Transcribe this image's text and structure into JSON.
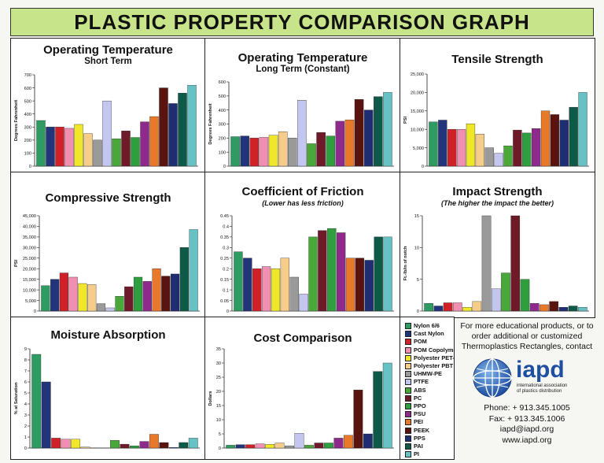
{
  "header": {
    "title": "PLASTIC PROPERTY COMPARISON GRAPH"
  },
  "materials": [
    {
      "name": "Nylon 6/6",
      "color": "#2e9c62"
    },
    {
      "name": "Cast Nylon",
      "color": "#22347a"
    },
    {
      "name": "POM",
      "color": "#cf2127"
    },
    {
      "name": "POM Copolymer",
      "color": "#f08fb2"
    },
    {
      "name": "Polyester PET-P",
      "color": "#f0e62a"
    },
    {
      "name": "Polyester PBT",
      "color": "#f6cc8a"
    },
    {
      "name": "UHMW-PE",
      "color": "#9a9a9a"
    },
    {
      "name": "PTFE",
      "color": "#c3c6ee"
    },
    {
      "name": "ABS",
      "color": "#4aa83a"
    },
    {
      "name": "PC",
      "color": "#6e1a28"
    },
    {
      "name": "PPO",
      "color": "#2f9e3e"
    },
    {
      "name": "PSU",
      "color": "#8d2a8c"
    },
    {
      "name": "PEI",
      "color": "#e8782a"
    },
    {
      "name": "PEEK",
      "color": "#5a1410"
    },
    {
      "name": "PPS",
      "color": "#1f2d72"
    },
    {
      "name": "PAI",
      "color": "#0e5a48"
    },
    {
      "name": "PI",
      "color": "#66c2c4"
    }
  ],
  "info": {
    "text": [
      "For more educational products, or to",
      "order additional or customized",
      "Thermoplastics Rectangles, contact"
    ],
    "logo_name": "iapd",
    "logo_tagline": [
      "international association",
      "of plastics distribution"
    ],
    "contact": [
      "Phone: + 913.345.1005",
      "Fax: + 913.345.1006",
      "iapd@iapd.org",
      "www.iapd.org"
    ]
  },
  "chart_data": [
    {
      "type": "bar",
      "title": "Operating Temperature",
      "subtitle": "Short Term",
      "xlabel": "",
      "ylabel": "Degrees Fahrenheit",
      "ylim": [
        0,
        700
      ],
      "ticks": [
        0,
        100,
        200,
        300,
        400,
        500,
        600,
        700
      ],
      "tick_labels": [
        "0",
        "100",
        "200",
        "300",
        "400",
        "500",
        "600",
        "700"
      ],
      "values": [
        350,
        300,
        300,
        290,
        320,
        250,
        200,
        500,
        210,
        270,
        220,
        340,
        380,
        600,
        480,
        560,
        620
      ]
    },
    {
      "type": "bar",
      "title": "Operating Temperature",
      "subtitle": "Long Term (Constant)",
      "xlabel": "",
      "ylabel": "Degrees Fahrenheit",
      "ylim": [
        0,
        600
      ],
      "ticks": [
        0,
        100,
        200,
        300,
        400,
        500,
        600
      ],
      "tick_labels": [
        "0",
        "100",
        "200",
        "300",
        "400",
        "500",
        "600"
      ],
      "values": [
        210,
        215,
        200,
        205,
        220,
        245,
        200,
        470,
        160,
        240,
        215,
        320,
        330,
        475,
        400,
        495,
        525
      ]
    },
    {
      "type": "bar",
      "title": "Tensile Strength",
      "subtitle": "",
      "xlabel": "",
      "ylabel": "PSI",
      "ylim": [
        0,
        25000
      ],
      "ticks": [
        0,
        5000,
        10000,
        15000,
        20000,
        25000
      ],
      "tick_labels": [
        "0",
        "5,000",
        "10,000",
        "15,000",
        "20,000",
        "25,000"
      ],
      "values": [
        12000,
        12500,
        10000,
        10000,
        11500,
        8700,
        5000,
        3500,
        5500,
        9800,
        9000,
        10200,
        15000,
        14000,
        12500,
        16000,
        20000
      ]
    },
    {
      "type": "bar",
      "title": "Compressive Strength",
      "subtitle": "",
      "xlabel": "",
      "ylabel": "PSI",
      "ylim": [
        0,
        45000
      ],
      "ticks": [
        0,
        5000,
        10000,
        15000,
        20000,
        25000,
        30000,
        35000,
        40000,
        45000
      ],
      "tick_labels": [
        "0",
        "5,000",
        "10,000",
        "15,000",
        "20,000",
        "25,000",
        "30,000",
        "35,000",
        "40,000",
        "45,000"
      ],
      "values": [
        12000,
        15000,
        18000,
        16000,
        13000,
        12500,
        3500,
        1500,
        7000,
        11500,
        16000,
        14000,
        20000,
        16500,
        17500,
        30000,
        38500
      ]
    },
    {
      "type": "bar",
      "title": "Coefficient of Friction",
      "subtitle": "(Lower has less friction)",
      "xlabel": "",
      "ylabel": "",
      "ylim": [
        0,
        0.45
      ],
      "ticks": [
        0,
        0.05,
        0.1,
        0.15,
        0.2,
        0.25,
        0.3,
        0.35,
        0.4,
        0.45
      ],
      "tick_labels": [
        "0",
        "0.05",
        "0.1",
        "0.15",
        "0.2",
        "0.25",
        "0.3",
        "0.35",
        "0.4",
        "0.45"
      ],
      "values": [
        0.28,
        0.25,
        0.2,
        0.21,
        0.2,
        0.25,
        0.16,
        0.08,
        0.35,
        0.38,
        0.39,
        0.37,
        0.25,
        0.25,
        0.24,
        0.35,
        0.35
      ]
    },
    {
      "type": "bar",
      "title": "Impact Strength",
      "subtitle": "(The higher the impact the better)",
      "xlabel": "",
      "ylabel": "Ft.-lb/in of notch",
      "ylim": [
        0,
        15
      ],
      "ticks": [
        0,
        5,
        10,
        15
      ],
      "tick_labels": [
        "0",
        "5",
        "10",
        "15"
      ],
      "values": [
        1.2,
        0.8,
        1.3,
        1.3,
        0.6,
        1.5,
        15,
        3.5,
        6,
        15,
        5,
        1.2,
        1,
        1.5,
        0.6,
        0.8,
        0.6
      ]
    },
    {
      "type": "bar",
      "title": "Moisture Absorption",
      "subtitle": "",
      "xlabel": "",
      "ylabel": "% at Saturation",
      "ylim": [
        0,
        9
      ],
      "ticks": [
        0,
        1,
        2,
        3,
        4,
        5,
        6,
        7,
        8,
        9
      ],
      "tick_labels": [
        "0",
        "1",
        "2",
        "3",
        "4",
        "5",
        "6",
        "7",
        "8",
        "9"
      ],
      "values": [
        8.5,
        6,
        0.9,
        0.8,
        0.8,
        0.1,
        0.01,
        0.01,
        0.7,
        0.35,
        0.2,
        0.6,
        1.25,
        0.5,
        0.05,
        0.5,
        0.9
      ]
    },
    {
      "type": "bar",
      "title": "Cost Comparison",
      "subtitle": "",
      "xlabel": "",
      "ylabel": "Dollars",
      "ylim": [
        0,
        35
      ],
      "ticks": [
        0,
        5,
        10,
        15,
        20,
        25,
        30,
        35
      ],
      "tick_labels": [
        "0",
        "5",
        "10",
        "15",
        "20",
        "25",
        "30",
        "35"
      ],
      "values": [
        1,
        1.2,
        1.2,
        1.5,
        1.3,
        1.8,
        0.8,
        5.2,
        1,
        1.8,
        1.8,
        3.5,
        4.5,
        20.5,
        5,
        27,
        30
      ]
    }
  ]
}
